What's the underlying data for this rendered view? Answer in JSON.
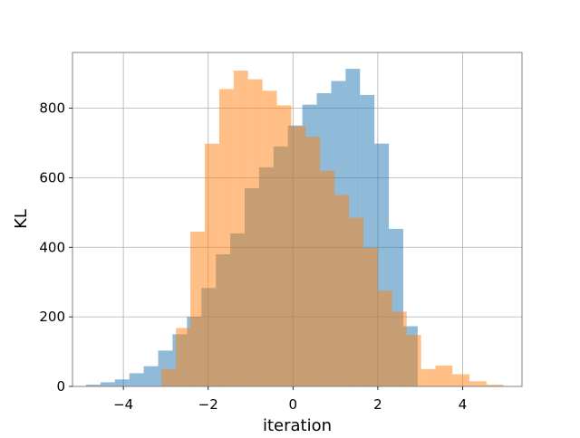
{
  "chart_data": {
    "type": "bar",
    "title": "",
    "xlabel": "iteration",
    "ylabel": "KL",
    "xlim": [
      -5.2,
      5.4
    ],
    "ylim": [
      0,
      960
    ],
    "xticks": [
      -4,
      -2,
      0,
      2,
      4
    ],
    "xtick_labels": [
      "−4",
      "−2",
      "0",
      "2",
      "4"
    ],
    "yticks": [
      0,
      200,
      400,
      600,
      800
    ],
    "ytick_labels": [
      "0",
      "200",
      "400",
      "600",
      "800"
    ],
    "grid": true,
    "legend": "none",
    "series": [
      {
        "color": "#1f77b4",
        "opacity": 0.5,
        "bin_edges": [
          -4.88,
          -4.54,
          -4.2,
          -3.86,
          -3.52,
          -3.18,
          -2.84,
          -2.5,
          -2.16,
          -1.82,
          -1.48,
          -1.14,
          -0.8,
          -0.46,
          -0.12,
          0.22,
          0.56,
          0.9,
          1.24,
          1.58,
          1.92,
          2.26,
          2.6,
          2.94
        ],
        "counts": [
          5,
          12,
          20,
          38,
          58,
          103,
          150,
          200,
          283,
          380,
          440,
          570,
          630,
          690,
          750,
          810,
          843,
          878,
          913,
          838,
          698,
          453,
          173
        ]
      },
      {
        "color": "#ff7f0e",
        "opacity": 0.5,
        "bin_edges": [
          -3.1,
          -2.76,
          -2.42,
          -2.08,
          -1.74,
          -1.4,
          -1.06,
          -0.72,
          -0.38,
          -0.04,
          0.3,
          0.64,
          0.98,
          1.32,
          1.66,
          2.0,
          2.34,
          2.68,
          3.02,
          3.36,
          3.76,
          4.16,
          4.56,
          4.96
        ],
        "counts": [
          50,
          168,
          445,
          698,
          855,
          908,
          883,
          850,
          808,
          748,
          718,
          620,
          550,
          485,
          398,
          275,
          215,
          148,
          50,
          60,
          35,
          15,
          5
        ]
      }
    ]
  }
}
